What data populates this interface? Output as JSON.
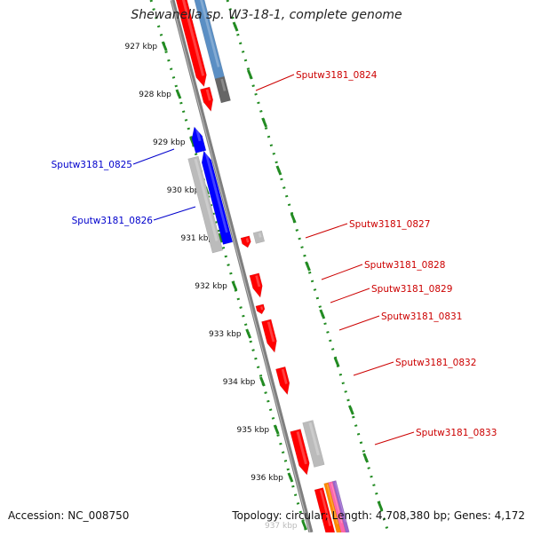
{
  "title": "Shewanella sp. W3-18-1, complete genome",
  "footer": {
    "accession": "Accession: NC_008750",
    "summary": "Topology: circular; Length: 4,708,380 bp; Genes: 4,172"
  },
  "colors": {
    "backbone": "#808080",
    "ticks": "#228b22",
    "forward_gene": "#ff0000",
    "reverse_gene": "#0000ff",
    "grey_gene": "#bbbbbb",
    "label_red": "#cc0000",
    "label_blue": "#0000cc"
  },
  "kbp_ticks": [
    "927 kbp",
    "928 kbp",
    "929 kbp",
    "930 kbp",
    "931 kbp",
    "932 kbp",
    "933 kbp",
    "934 kbp",
    "935 kbp",
    "936 kbp",
    "937 kbp"
  ],
  "gene_labels": [
    {
      "text": "Sputw3181_0824",
      "side": "right",
      "color": "red"
    },
    {
      "text": "Sputw3181_0825",
      "side": "left",
      "color": "blue"
    },
    {
      "text": "Sputw3181_0826",
      "side": "left",
      "color": "blue"
    },
    {
      "text": "Sputw3181_0827",
      "side": "right",
      "color": "red"
    },
    {
      "text": "Sputw3181_0828",
      "side": "right",
      "color": "red"
    },
    {
      "text": "Sputw3181_0829",
      "side": "right",
      "color": "red"
    },
    {
      "text": "Sputw3181_0831",
      "side": "right",
      "color": "red"
    },
    {
      "text": "Sputw3181_0832",
      "side": "right",
      "color": "red"
    },
    {
      "text": "Sputw3181_0833",
      "side": "right",
      "color": "red"
    }
  ]
}
